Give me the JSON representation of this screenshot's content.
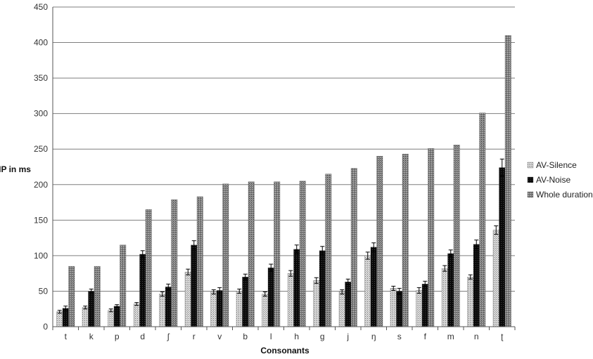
{
  "chart_data": {
    "type": "bar",
    "title": "",
    "xlabel": "Consonants",
    "ylabel": "IP in ms",
    "ylim": [
      0,
      450
    ],
    "yticks": [
      0,
      50,
      100,
      150,
      200,
      250,
      300,
      350,
      400,
      450
    ],
    "grid": true,
    "legend_position": "right",
    "categories": [
      "t",
      "k",
      "p",
      "d",
      "ʃ",
      "r",
      "v",
      "b",
      "l",
      "h",
      "g",
      "j",
      "ŋ",
      "s",
      "f",
      "m",
      "n",
      "ʈ"
    ],
    "series": [
      {
        "name": "AV-Silence",
        "pattern": "light-dotted",
        "color": "#b0b0b0",
        "values": [
          21,
          27,
          23,
          32,
          46,
          77,
          49,
          50,
          46,
          75,
          65,
          49,
          100,
          54,
          51,
          82,
          70,
          136
        ],
        "errors": [
          2,
          2,
          2,
          2,
          3,
          4,
          3,
          3,
          3,
          4,
          4,
          3,
          5,
          3,
          4,
          4,
          3,
          6
        ]
      },
      {
        "name": "AV-Noise",
        "pattern": "dark-dotted",
        "color": "#111111",
        "values": [
          26,
          50,
          29,
          102,
          56,
          115,
          51,
          70,
          83,
          109,
          107,
          63,
          112,
          50,
          60,
          103,
          116,
          224
        ],
        "errors": [
          3,
          3,
          2,
          5,
          4,
          6,
          4,
          4,
          5,
          6,
          6,
          4,
          6,
          4,
          4,
          5,
          6,
          12
        ]
      },
      {
        "name": "Whole duration",
        "pattern": "medium-dotted",
        "color": "#6e6e6e",
        "values": [
          85,
          85,
          115,
          165,
          179,
          183,
          201,
          204,
          204,
          205,
          215,
          223,
          240,
          243,
          251,
          256,
          301,
          410
        ]
      }
    ]
  }
}
